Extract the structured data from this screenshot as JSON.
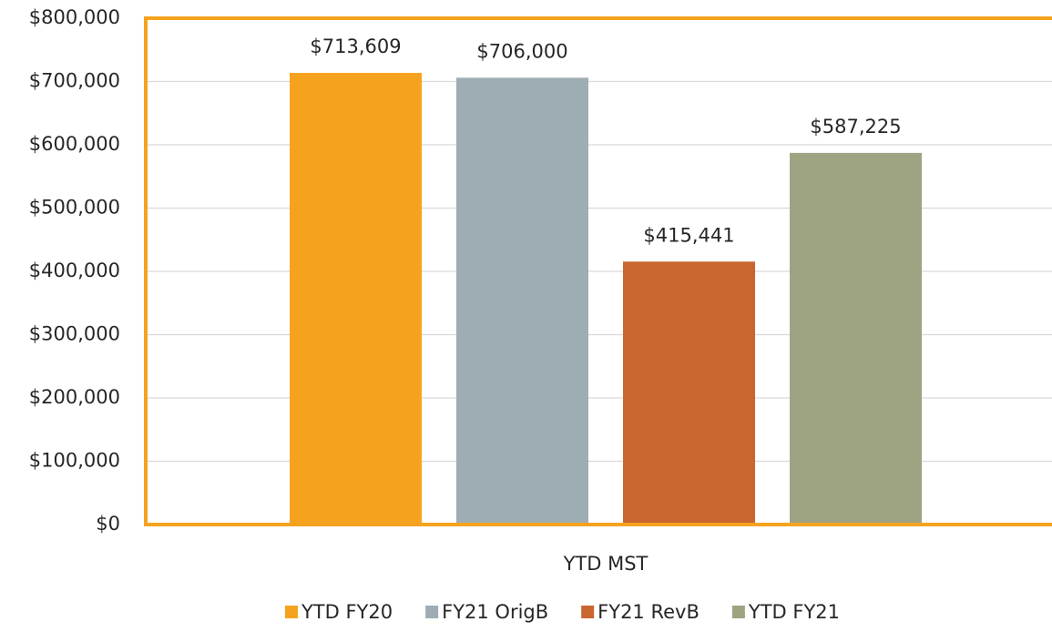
{
  "chart_data": {
    "type": "bar",
    "categories": [
      "YTD MST"
    ],
    "series": [
      {
        "name": "YTD FY20",
        "color": "#f5a31f",
        "values": [
          713609
        ],
        "value_labels": [
          "$713,609"
        ]
      },
      {
        "name": "FY21 OrigB",
        "color": "#9eadb3",
        "values": [
          706000
        ],
        "value_labels": [
          "$706,000"
        ]
      },
      {
        "name": "FY21 RevB",
        "color": "#c96630",
        "values": [
          415441
        ],
        "value_labels": [
          "$415,441"
        ]
      },
      {
        "name": "YTD FY21",
        "color": "#9ea382",
        "values": [
          587225
        ],
        "value_labels": [
          "$587,225"
        ]
      }
    ],
    "ylim": [
      0,
      800000
    ],
    "yticks": [
      {
        "value": 0,
        "label": "$0"
      },
      {
        "value": 100000,
        "label": "$100,000"
      },
      {
        "value": 200000,
        "label": "$200,000"
      },
      {
        "value": 300000,
        "label": "$300,000"
      },
      {
        "value": 400000,
        "label": "$400,000"
      },
      {
        "value": 500000,
        "label": "$500,000"
      },
      {
        "value": 600000,
        "label": "$600,000"
      },
      {
        "value": 700000,
        "label": "$700,000"
      },
      {
        "value": 800000,
        "label": "$800,000"
      }
    ],
    "grid": true,
    "legend": "bottom"
  }
}
